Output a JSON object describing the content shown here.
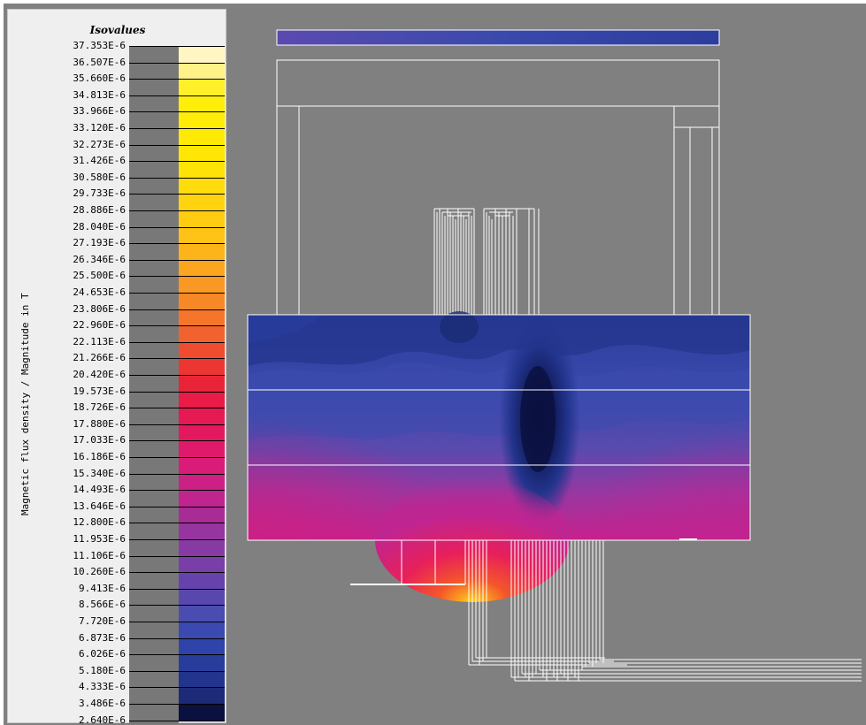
{
  "legend": {
    "title": "Isovalues",
    "axis_label": "Magnetic flux density / Magnitude in T",
    "levels": [
      {
        "value": "37.353E-6",
        "color": "#fff6c4"
      },
      {
        "value": "36.507E-6",
        "color": "#fff286"
      },
      {
        "value": "35.660E-6",
        "color": "#fff02a"
      },
      {
        "value": "34.813E-6",
        "color": "#ffee0a"
      },
      {
        "value": "33.966E-6",
        "color": "#ffec08"
      },
      {
        "value": "33.120E-6",
        "color": "#ffea06"
      },
      {
        "value": "32.273E-6",
        "color": "#ffe604"
      },
      {
        "value": "31.426E-6",
        "color": "#ffe208"
      },
      {
        "value": "30.580E-6",
        "color": "#ffdc0c"
      },
      {
        "value": "29.733E-6",
        "color": "#ffd40e"
      },
      {
        "value": "28.886E-6",
        "color": "#ffcc12"
      },
      {
        "value": "28.040E-6",
        "color": "#ffc216"
      },
      {
        "value": "27.193E-6",
        "color": "#fdb41a"
      },
      {
        "value": "26.346E-6",
        "color": "#fba61e"
      },
      {
        "value": "25.500E-6",
        "color": "#f99822"
      },
      {
        "value": "24.653E-6",
        "color": "#f78826"
      },
      {
        "value": "23.806E-6",
        "color": "#f5762a"
      },
      {
        "value": "22.960E-6",
        "color": "#f2622e"
      },
      {
        "value": "22.113E-6",
        "color": "#ef4c30"
      },
      {
        "value": "21.266E-6",
        "color": "#ec3634"
      },
      {
        "value": "20.420E-6",
        "color": "#e92438"
      },
      {
        "value": "19.573E-6",
        "color": "#e81c46"
      },
      {
        "value": "18.726E-6",
        "color": "#e61a52"
      },
      {
        "value": "17.880E-6",
        "color": "#e4185e"
      },
      {
        "value": "17.033E-6",
        "color": "#e01a6a"
      },
      {
        "value": "16.186E-6",
        "color": "#d81c78"
      },
      {
        "value": "15.340E-6",
        "color": "#cc2084"
      },
      {
        "value": "14.493E-6",
        "color": "#c0248e"
      },
      {
        "value": "13.646E-6",
        "color": "#a82c96"
      },
      {
        "value": "12.800E-6",
        "color": "#9634a0"
      },
      {
        "value": "11.953E-6",
        "color": "#883aa4"
      },
      {
        "value": "11.106E-6",
        "color": "#7a3ea8"
      },
      {
        "value": "10.260E-6",
        "color": "#6642ac"
      },
      {
        "value": "9.413E-6",
        "color": "#5848ae"
      },
      {
        "value": "8.566E-6",
        "color": "#4a4cb0"
      },
      {
        "value": "7.720E-6",
        "color": "#3a4ab0"
      },
      {
        "value": "6.873E-6",
        "color": "#2e44aa"
      },
      {
        "value": "6.026E-6",
        "color": "#283c9c"
      },
      {
        "value": "5.180E-6",
        "color": "#22348c"
      },
      {
        "value": "4.333E-6",
        "color": "#1c2a78"
      },
      {
        "value": "3.486E-6",
        "color": "#141e60"
      },
      {
        "value": "2.640E-6",
        "color": "#0a1040"
      }
    ]
  }
}
